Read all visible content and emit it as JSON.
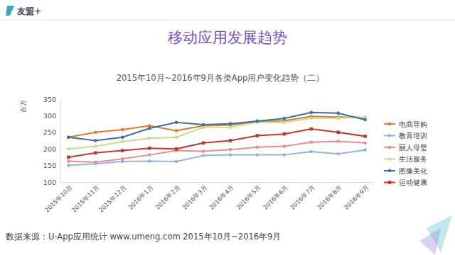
{
  "chart_data": {
    "type": "line",
    "brand": "友盟+",
    "title": "移动应用发展趋势",
    "subtitle": "2015年10月~2016年9月各类App用户变化趋势（二）",
    "y_label": "百万",
    "source": "数据来源：U-App应用统计 www.umeng.com 2015年10月~2016年9月",
    "categories": [
      "2015年10月",
      "2015年11月",
      "2015年12月",
      "2016年1月",
      "2016年2月",
      "2016年3月",
      "2016年4月",
      "2016年5月",
      "2016年6月",
      "2016年7月",
      "2016年8月",
      "2016年9月"
    ],
    "series": [
      {
        "name": "电商导购",
        "color": "#e07b28",
        "marker": "circle",
        "line_style": "solid",
        "values": [
          235,
          250,
          258,
          270,
          255,
          270,
          272,
          282,
          285,
          298,
          296,
          295
        ]
      },
      {
        "name": "教育培训",
        "color": "#8fb5e0",
        "marker": "circle",
        "line_style": "solid",
        "values": [
          150,
          155,
          162,
          163,
          162,
          180,
          182,
          182,
          182,
          192,
          185,
          197
        ]
      },
      {
        "name": "丽人母婴",
        "color": "#e88c8c",
        "marker": "circle",
        "line_style": "solid",
        "values": [
          163,
          160,
          170,
          182,
          195,
          193,
          198,
          205,
          208,
          220,
          223,
          218
        ]
      },
      {
        "name": "生活服务",
        "color": "#c3df8c",
        "marker": "circle",
        "line_style": "solid",
        "values": [
          200,
          208,
          222,
          232,
          235,
          265,
          265,
          280,
          280,
          293,
          293,
          295
        ]
      },
      {
        "name": "图像美化",
        "color": "#3b6ea6",
        "marker": "circle",
        "line_style": "solid",
        "values": [
          235,
          225,
          235,
          262,
          280,
          273,
          276,
          284,
          292,
          310,
          308,
          288
        ]
      },
      {
        "name": "运动健康",
        "color": "#c0392b",
        "marker": "square",
        "line_style": "solid",
        "values": [
          175,
          188,
          195,
          202,
          200,
          218,
          225,
          240,
          245,
          260,
          250,
          238
        ]
      }
    ],
    "ylim": [
      100,
      350
    ],
    "yticks": [
      100,
      150,
      200,
      250,
      300,
      350
    ],
    "grid": false,
    "legend": "right"
  }
}
